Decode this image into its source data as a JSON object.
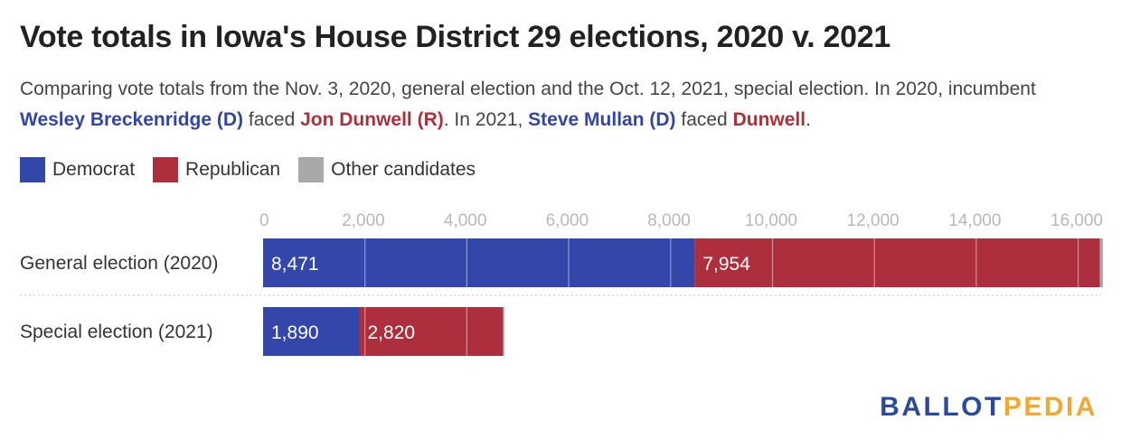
{
  "title": "Vote totals in Iowa's House District 29 elections, 2020 v. 2021",
  "subtitle": {
    "part1": "Comparing vote totals from the Nov. 3, 2020, general election and the Oct. 12, 2021, special election. In 2020, incumbent ",
    "name1": "Wesley Breckenridge (D)",
    "part2": " faced ",
    "name2": "Jon Dunwell (R)",
    "part3": ". In 2021, ",
    "name3": "Steve Mullan (D)",
    "part4": " faced ",
    "name4": "Dunwell",
    "part5": "."
  },
  "colors": {
    "democrat": "#3346a9",
    "republican": "#ad2f3d",
    "other": "#a8a8a8"
  },
  "logo": {
    "part1": "BALLOT",
    "part2": "PEDIA"
  },
  "chart_data": {
    "type": "bar",
    "orientation": "horizontal",
    "stacked": true,
    "categories": [
      "General election (2020)",
      "Special election (2021)"
    ],
    "series": [
      {
        "name": "Democrat",
        "values": [
          8471,
          1890
        ],
        "labels": [
          "8,471",
          "1,890"
        ]
      },
      {
        "name": "Republican",
        "values": [
          7954,
          2820
        ],
        "labels": [
          "7,954",
          "2,820"
        ]
      },
      {
        "name": "Other candidates",
        "values": [
          60,
          25
        ],
        "labels": [
          "",
          ""
        ]
      }
    ],
    "ticks": [
      0,
      2000,
      4000,
      6000,
      8000,
      10000,
      12000,
      14000,
      16000
    ],
    "tick_labels": [
      "0",
      "2,000",
      "4,000",
      "6,000",
      "8,000",
      "10,000",
      "12,000",
      "14,000",
      "16,000"
    ],
    "xlim": [
      0,
      16500
    ],
    "grid": true,
    "legend": "top-left"
  }
}
